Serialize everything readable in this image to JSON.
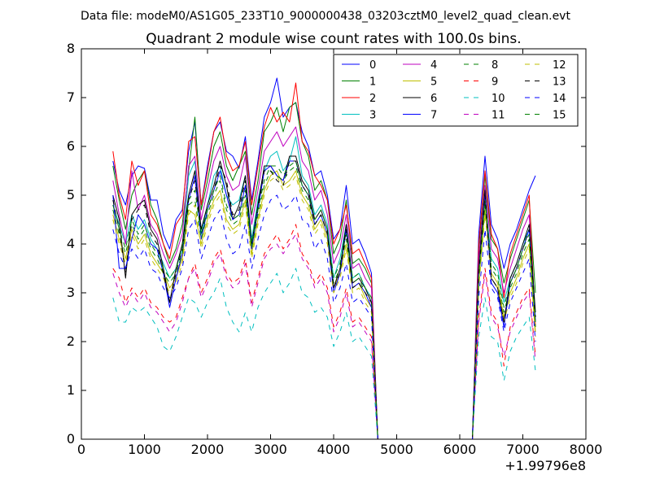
{
  "suptitle": "Data file: modeM0/AS1G05_233T10_9000000438_03203cztM0_level2_quad_clean.evt",
  "chart_data": {
    "type": "line",
    "title": "Quadrant 2 module wise count rates with 100.0s bins.",
    "xlabel": "",
    "ylabel": "",
    "xlim": [
      0,
      8000
    ],
    "ylim": [
      0,
      8
    ],
    "x_ticks": [
      "0",
      "1000",
      "2000",
      "3000",
      "4000",
      "5000",
      "6000",
      "7000",
      "8000"
    ],
    "y_ticks": [
      "0",
      "1",
      "2",
      "3",
      "4",
      "5",
      "6",
      "7",
      "8"
    ],
    "x_offset_label": "+1.99796e8",
    "grid": false,
    "legend_position": "top-right",
    "legend_columns": 4,
    "x": [
      500,
      600,
      700,
      800,
      900,
      1000,
      1100,
      1200,
      1300,
      1400,
      1500,
      1600,
      1700,
      1800,
      1900,
      2000,
      2100,
      2200,
      2300,
      2400,
      2500,
      2600,
      2700,
      2800,
      2900,
      3000,
      3100,
      3200,
      3300,
      3400,
      3500,
      3600,
      3700,
      3800,
      3900,
      4000,
      4100,
      4200,
      4300,
      4400,
      4500,
      4600,
      4700,
      4800,
      4900,
      5000,
      5100,
      5200,
      5300,
      5400,
      5500,
      5600,
      5700,
      5800,
      5900,
      6000,
      6100,
      6200,
      6300,
      6400,
      6500,
      6600,
      6700,
      6800,
      6900,
      7000,
      7100,
      7200
    ],
    "series": [
      {
        "name": "0",
        "color": "#0000ff",
        "dash": "solid",
        "values": [
          5.7,
          5.1,
          4.8,
          5.4,
          5.6,
          5.55,
          4.9,
          4.9,
          4.2,
          3.9,
          4.5,
          4.7,
          5.9,
          6.5,
          4.8,
          5.6,
          6.3,
          6.5,
          5.9,
          5.8,
          5.55,
          6.2,
          4.9,
          5.7,
          6.6,
          6.9,
          7.4,
          6.6,
          6.8,
          6.9,
          6.3,
          6.0,
          5.4,
          5.5,
          5.0,
          4.1,
          4.3,
          5.2,
          4.0,
          4.1,
          3.8,
          3.4,
          0,
          0,
          0,
          0,
          0,
          0,
          0,
          0,
          0,
          0,
          0,
          0,
          0,
          0,
          0,
          0,
          4.2,
          5.8,
          4.4,
          4.1,
          3.5,
          4.0,
          4.3,
          4.7,
          5.1,
          5.4
        ]
      },
      {
        "name": "1",
        "color": "#008000",
        "dash": "solid",
        "values": [
          5.6,
          4.9,
          4.3,
          5.0,
          5.3,
          5.5,
          4.8,
          4.5,
          4.0,
          3.6,
          3.9,
          4.4,
          5.5,
          6.6,
          4.7,
          5.3,
          6.0,
          6.3,
          5.6,
          5.3,
          5.6,
          5.9,
          4.6,
          5.3,
          6.3,
          6.5,
          6.8,
          6.3,
          6.8,
          6.9,
          6.1,
          5.8,
          5.1,
          5.3,
          4.9,
          3.8,
          4.1,
          4.9,
          3.6,
          3.7,
          3.5,
          3.2,
          0,
          0,
          0,
          0,
          0,
          0,
          0,
          0,
          0,
          0,
          0,
          0,
          0,
          0,
          0,
          0,
          3.9,
          5.4,
          4.1,
          3.9,
          3.2,
          3.7,
          4.1,
          4.5,
          4.9,
          3.0
        ]
      },
      {
        "name": "2",
        "color": "#ff0000",
        "dash": "solid",
        "values": [
          5.9,
          5.0,
          4.5,
          5.7,
          5.2,
          5.5,
          4.6,
          4.4,
          4.0,
          3.7,
          4.4,
          4.6,
          6.1,
          6.2,
          4.8,
          5.5,
          6.3,
          6.6,
          5.8,
          5.5,
          5.6,
          6.1,
          4.8,
          5.6,
          6.4,
          6.8,
          6.5,
          6.7,
          6.5,
          7.3,
          6.1,
          5.9,
          5.4,
          5.2,
          4.9,
          4.0,
          4.3,
          4.8,
          3.8,
          3.9,
          3.6,
          3.3,
          0,
          0,
          0,
          0,
          0,
          0,
          0,
          0,
          0,
          0,
          0,
          0,
          0,
          0,
          0,
          0,
          4.0,
          5.5,
          4.2,
          3.9,
          2.9,
          3.8,
          4.2,
          4.6,
          5.0,
          2.3
        ]
      },
      {
        "name": "3",
        "color": "#00bfbf",
        "dash": "solid",
        "values": [
          4.8,
          4.4,
          4.0,
          4.6,
          4.3,
          4.5,
          4.1,
          3.9,
          3.6,
          3.3,
          3.5,
          3.9,
          5.4,
          5.7,
          4.2,
          4.8,
          5.4,
          5.6,
          5.0,
          4.8,
          4.9,
          5.4,
          4.1,
          4.9,
          5.5,
          5.8,
          5.9,
          5.5,
          5.7,
          6.2,
          5.4,
          5.2,
          4.6,
          4.8,
          4.4,
          3.3,
          3.7,
          4.4,
          3.3,
          3.4,
          3.1,
          2.9,
          0,
          0,
          0,
          0,
          0,
          0,
          0,
          0,
          0,
          0,
          0,
          0,
          0,
          0,
          0,
          0,
          3.5,
          4.9,
          3.7,
          3.5,
          2.8,
          3.3,
          3.6,
          4.0,
          4.3,
          2.5
        ]
      },
      {
        "name": "4",
        "color": "#bf00bf",
        "dash": "solid",
        "values": [
          5.3,
          4.6,
          4.0,
          5.5,
          4.7,
          5.0,
          4.4,
          4.2,
          3.8,
          3.5,
          3.8,
          4.2,
          5.6,
          5.8,
          4.5,
          5.1,
          5.7,
          6.0,
          5.4,
          5.1,
          5.2,
          5.8,
          4.4,
          5.1,
          5.9,
          6.1,
          6.3,
          6.0,
          6.2,
          6.4,
          5.7,
          5.5,
          4.9,
          5.1,
          4.6,
          3.6,
          3.9,
          4.6,
          3.5,
          3.6,
          3.3,
          3.1,
          0,
          0,
          0,
          0,
          0,
          0,
          0,
          0,
          0,
          0,
          0,
          0,
          0,
          0,
          0,
          0,
          3.7,
          5.2,
          3.9,
          3.7,
          3.0,
          3.5,
          3.9,
          4.3,
          4.6,
          2.4
        ]
      },
      {
        "name": "5",
        "color": "#bfbf00",
        "dash": "solid",
        "values": [
          4.6,
          4.1,
          3.7,
          4.3,
          4.0,
          4.2,
          3.8,
          3.6,
          3.4,
          3.1,
          3.3,
          3.7,
          4.7,
          4.6,
          4.0,
          4.5,
          4.9,
          5.1,
          4.5,
          4.3,
          4.4,
          4.9,
          3.8,
          4.5,
          5.1,
          5.4,
          5.5,
          5.2,
          5.3,
          5.5,
          5.0,
          4.8,
          4.3,
          4.5,
          4.1,
          3.1,
          3.4,
          4.0,
          3.1,
          3.2,
          2.9,
          2.7,
          0,
          0,
          0,
          0,
          0,
          0,
          0,
          0,
          0,
          0,
          0,
          0,
          0,
          0,
          0,
          0,
          3.2,
          4.7,
          3.4,
          3.2,
          2.5,
          3.0,
          3.3,
          3.7,
          4.0,
          2.2
        ]
      },
      {
        "name": "6",
        "color": "#000000",
        "dash": "solid",
        "values": [
          5.0,
          4.5,
          3.3,
          4.6,
          4.8,
          4.9,
          4.3,
          4.1,
          3.5,
          2.8,
          3.5,
          4.0,
          5.0,
          5.5,
          4.3,
          4.8,
          5.2,
          5.7,
          5.2,
          4.5,
          4.8,
          5.4,
          4.0,
          4.8,
          5.6,
          5.6,
          5.4,
          5.3,
          5.8,
          5.8,
          5.3,
          5.1,
          4.5,
          4.7,
          4.3,
          3.1,
          3.5,
          4.4,
          3.2,
          3.3,
          3.1,
          2.8,
          0,
          0,
          0,
          0,
          0,
          0,
          0,
          0,
          0,
          0,
          0,
          0,
          0,
          0,
          0,
          0,
          3.5,
          5.1,
          3.3,
          3.1,
          2.4,
          3.3,
          3.6,
          4.0,
          4.4,
          2.6
        ]
      },
      {
        "name": "7",
        "color": "#0000ff",
        "dash": "solid",
        "values": [
          5.0,
          3.5,
          3.5,
          4.1,
          4.6,
          4.4,
          4.0,
          3.9,
          3.4,
          2.7,
          3.3,
          3.8,
          4.9,
          5.4,
          4.1,
          4.7,
          5.1,
          5.5,
          5.0,
          4.5,
          4.6,
          5.2,
          3.9,
          4.7,
          5.5,
          5.6,
          5.4,
          5.3,
          5.7,
          5.7,
          5.2,
          5.0,
          4.4,
          4.6,
          4.2,
          3.0,
          3.4,
          4.3,
          3.1,
          3.2,
          3.0,
          2.7,
          0,
          0,
          0,
          0,
          0,
          0,
          0,
          0,
          0,
          0,
          0,
          0,
          0,
          0,
          0,
          0,
          3.4,
          5.0,
          3.2,
          3.0,
          2.3,
          3.2,
          3.5,
          3.9,
          4.3,
          2.4
        ]
      },
      {
        "name": "8",
        "color": "#008000",
        "dash": "dashed",
        "values": [
          4.7,
          4.2,
          3.8,
          4.4,
          4.1,
          4.3,
          3.9,
          3.7,
          3.4,
          3.2,
          3.4,
          3.8,
          4.8,
          4.9,
          4.1,
          4.6,
          5.0,
          5.3,
          4.7,
          4.4,
          4.5,
          5.0,
          3.9,
          4.6,
          5.2,
          5.5,
          5.4,
          5.3,
          5.5,
          5.6,
          5.1,
          4.9,
          4.4,
          4.6,
          4.2,
          3.2,
          3.5,
          4.1,
          3.2,
          3.3,
          3.0,
          2.8,
          0,
          0,
          0,
          0,
          0,
          0,
          0,
          0,
          0,
          0,
          0,
          0,
          0,
          0,
          0,
          0,
          3.3,
          4.8,
          3.5,
          3.3,
          2.6,
          3.1,
          3.4,
          3.8,
          4.1,
          2.3
        ]
      },
      {
        "name": "9",
        "color": "#ff0000",
        "dash": "dashed",
        "values": [
          3.5,
          3.3,
          2.8,
          3.1,
          2.9,
          3.1,
          2.8,
          2.7,
          2.5,
          2.4,
          2.5,
          2.9,
          3.3,
          3.6,
          3.0,
          3.3,
          3.7,
          3.9,
          3.4,
          3.2,
          3.3,
          3.7,
          2.8,
          3.3,
          3.8,
          4.0,
          4.2,
          3.9,
          4.1,
          4.4,
          3.8,
          3.6,
          3.2,
          3.4,
          3.1,
          2.3,
          2.6,
          3.1,
          2.4,
          2.5,
          2.3,
          2.1,
          0,
          0,
          0,
          0,
          0,
          0,
          0,
          0,
          0,
          0,
          0,
          0,
          0,
          0,
          0,
          0,
          2.5,
          3.5,
          2.6,
          2.4,
          1.5,
          2.3,
          2.6,
          2.9,
          3.1,
          1.7
        ]
      },
      {
        "name": "10",
        "color": "#00bfbf",
        "dash": "dashed",
        "values": [
          2.9,
          2.4,
          2.4,
          2.7,
          2.6,
          2.7,
          2.5,
          2.3,
          1.9,
          1.8,
          2.1,
          2.5,
          2.9,
          2.8,
          2.5,
          2.8,
          3.0,
          3.3,
          2.7,
          2.4,
          2.2,
          2.6,
          2.2,
          2.7,
          3.0,
          3.2,
          3.4,
          3.0,
          3.2,
          3.5,
          3.0,
          2.9,
          2.6,
          2.7,
          2.5,
          1.9,
          2.2,
          2.6,
          2.0,
          2.1,
          1.9,
          1.7,
          0,
          0,
          0,
          0,
          0,
          0,
          0,
          0,
          0,
          0,
          0,
          0,
          0,
          0,
          0,
          0,
          2.1,
          2.9,
          2.1,
          2.0,
          1.2,
          1.8,
          2.1,
          2.3,
          2.5,
          1.4
        ]
      },
      {
        "name": "11",
        "color": "#bf00bf",
        "dash": "dashed",
        "values": [
          3.4,
          3.0,
          2.7,
          3.0,
          2.8,
          3.0,
          2.7,
          2.6,
          2.4,
          2.2,
          2.4,
          2.8,
          3.3,
          3.5,
          2.9,
          3.2,
          3.6,
          3.8,
          3.3,
          3.1,
          3.2,
          3.6,
          2.7,
          3.2,
          3.7,
          3.9,
          4.0,
          3.8,
          4.0,
          4.2,
          3.7,
          3.5,
          3.1,
          3.3,
          3.0,
          2.2,
          2.5,
          3.0,
          2.3,
          2.4,
          2.2,
          2.0,
          0,
          0,
          0,
          0,
          0,
          0,
          0,
          0,
          0,
          0,
          0,
          0,
          0,
          0,
          0,
          0,
          2.4,
          3.4,
          2.5,
          2.3,
          1.7,
          2.2,
          2.5,
          2.8,
          3.0,
          1.6
        ]
      },
      {
        "name": "12",
        "color": "#bfbf00",
        "dash": "dashed",
        "values": [
          4.5,
          4.0,
          3.6,
          4.2,
          3.9,
          4.1,
          3.7,
          3.5,
          3.3,
          3.0,
          3.2,
          3.6,
          4.6,
          4.8,
          3.9,
          4.4,
          4.8,
          5.0,
          4.4,
          4.2,
          4.3,
          4.8,
          3.7,
          4.4,
          5.0,
          5.3,
          5.4,
          5.1,
          5.2,
          5.4,
          4.9,
          4.7,
          4.2,
          4.4,
          4.0,
          3.0,
          3.3,
          3.9,
          3.0,
          3.1,
          2.8,
          2.6,
          0,
          0,
          0,
          0,
          0,
          0,
          0,
          0,
          0,
          0,
          0,
          0,
          0,
          0,
          0,
          0,
          3.1,
          4.6,
          3.3,
          3.1,
          2.4,
          2.9,
          3.2,
          3.6,
          3.9,
          2.1
        ]
      },
      {
        "name": "13",
        "color": "#000000",
        "dash": "dashed",
        "values": [
          4.9,
          4.3,
          3.4,
          4.5,
          4.7,
          4.8,
          4.2,
          4.0,
          3.4,
          2.8,
          3.4,
          3.9,
          4.9,
          5.3,
          4.2,
          4.7,
          5.1,
          5.6,
          5.3,
          4.6,
          4.7,
          5.3,
          4.0,
          4.7,
          5.5,
          5.5,
          5.3,
          5.2,
          5.7,
          5.7,
          5.2,
          5.0,
          4.4,
          4.6,
          4.2,
          3.1,
          3.4,
          4.3,
          3.1,
          3.2,
          3.0,
          2.8,
          0,
          0,
          0,
          0,
          0,
          0,
          0,
          0,
          0,
          0,
          0,
          0,
          0,
          0,
          0,
          0,
          3.4,
          5.0,
          3.3,
          3.1,
          2.4,
          3.2,
          3.5,
          3.9,
          4.3,
          2.5
        ]
      },
      {
        "name": "14",
        "color": "#0000ff",
        "dash": "dashed",
        "values": [
          4.3,
          3.8,
          3.5,
          3.9,
          3.7,
          3.9,
          3.5,
          3.4,
          3.1,
          2.9,
          3.1,
          3.5,
          4.3,
          4.5,
          3.7,
          4.1,
          4.5,
          4.7,
          4.1,
          3.8,
          3.9,
          4.4,
          3.5,
          4.1,
          4.6,
          4.9,
          5.0,
          4.7,
          4.8,
          5.0,
          4.5,
          4.4,
          3.9,
          4.1,
          3.7,
          2.8,
          3.1,
          3.6,
          2.8,
          2.9,
          2.7,
          2.5,
          0,
          0,
          0,
          0,
          0,
          0,
          0,
          0,
          0,
          0,
          0,
          0,
          0,
          0,
          0,
          0,
          2.9,
          4.3,
          3.1,
          2.9,
          2.2,
          2.8,
          3.1,
          3.4,
          3.7,
          2.0
        ]
      },
      {
        "name": "15",
        "color": "#008000",
        "dash": "dashed",
        "values": [
          4.8,
          4.3,
          3.9,
          4.5,
          4.2,
          4.4,
          4.0,
          3.8,
          3.5,
          3.3,
          3.5,
          3.9,
          4.9,
          5.1,
          4.2,
          4.7,
          5.1,
          5.4,
          4.8,
          4.5,
          4.6,
          5.1,
          4.0,
          4.7,
          5.3,
          5.6,
          5.6,
          5.4,
          5.6,
          5.7,
          5.2,
          5.0,
          4.5,
          4.7,
          4.3,
          3.3,
          3.6,
          4.2,
          3.3,
          3.4,
          3.1,
          2.9,
          0,
          0,
          0,
          0,
          0,
          0,
          0,
          0,
          0,
          0,
          0,
          0,
          0,
          0,
          0,
          0,
          3.4,
          4.9,
          3.6,
          3.4,
          2.7,
          3.2,
          3.5,
          3.9,
          4.2,
          2.4
        ]
      }
    ]
  }
}
